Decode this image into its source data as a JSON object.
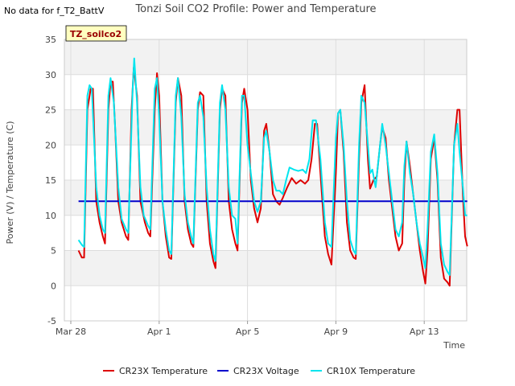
{
  "no_data_note": "No data for f_T2_BattV",
  "chart_data": {
    "type": "line",
    "title": "Tonzi Soil CO2 Profile: Power and Temperature",
    "xlabel": "Time",
    "ylabel": "Power (V) / Temperature (C)",
    "ylim": [
      -5,
      35
    ],
    "xlim": [
      "2025-03-28",
      "2025-04-16"
    ],
    "yticks": [
      -5,
      0,
      5,
      10,
      15,
      20,
      25,
      30,
      35
    ],
    "xticks": [
      {
        "label": "Mar 28",
        "day": 0
      },
      {
        "label": "Apr 1",
        "day": 4
      },
      {
        "label": "Apr 5",
        "day": 8
      },
      {
        "label": "Apr 9",
        "day": 12
      },
      {
        "label": "Apr 13",
        "day": 16
      }
    ],
    "badge": "TZ_soilco2",
    "grid": true,
    "background_bands": true,
    "legend_position": "bottom",
    "series": [
      {
        "name": "CR23X Temperature",
        "color": "#dd0000",
        "points": [
          [
            0.35,
            5
          ],
          [
            0.5,
            4
          ],
          [
            0.6,
            4
          ],
          [
            0.75,
            25
          ],
          [
            0.9,
            28
          ],
          [
            1.0,
            28
          ],
          [
            1.15,
            12
          ],
          [
            1.3,
            9
          ],
          [
            1.45,
            7
          ],
          [
            1.55,
            6
          ],
          [
            1.7,
            25
          ],
          [
            1.8,
            29
          ],
          [
            1.9,
            29
          ],
          [
            2.0,
            23
          ],
          [
            2.15,
            12
          ],
          [
            2.3,
            9
          ],
          [
            2.5,
            7
          ],
          [
            2.6,
            6.5
          ],
          [
            2.75,
            25
          ],
          [
            2.85,
            31
          ],
          [
            3.0,
            27
          ],
          [
            3.15,
            12
          ],
          [
            3.35,
            9
          ],
          [
            3.5,
            7.5
          ],
          [
            3.6,
            7
          ],
          [
            3.8,
            25
          ],
          [
            3.9,
            30.2
          ],
          [
            4.0,
            27
          ],
          [
            4.15,
            12
          ],
          [
            4.3,
            7
          ],
          [
            4.45,
            4
          ],
          [
            4.55,
            3.8
          ],
          [
            4.75,
            26
          ],
          [
            4.85,
            29.5
          ],
          [
            5.0,
            27
          ],
          [
            5.15,
            12
          ],
          [
            5.3,
            8
          ],
          [
            5.45,
            6
          ],
          [
            5.55,
            5.5
          ],
          [
            5.75,
            25
          ],
          [
            5.85,
            27.5
          ],
          [
            6.0,
            27
          ],
          [
            6.15,
            12
          ],
          [
            6.3,
            6
          ],
          [
            6.45,
            3.5
          ],
          [
            6.55,
            2.5
          ],
          [
            6.75,
            25
          ],
          [
            6.85,
            28
          ],
          [
            7.0,
            27
          ],
          [
            7.15,
            12
          ],
          [
            7.3,
            8
          ],
          [
            7.45,
            6
          ],
          [
            7.55,
            5
          ],
          [
            7.75,
            26
          ],
          [
            7.85,
            28
          ],
          [
            8.0,
            25
          ],
          [
            8.15,
            15
          ],
          [
            8.3,
            11
          ],
          [
            8.45,
            9
          ],
          [
            8.6,
            11
          ],
          [
            8.75,
            22
          ],
          [
            8.85,
            23
          ],
          [
            9.0,
            19
          ],
          [
            9.15,
            13
          ],
          [
            9.3,
            12
          ],
          [
            9.45,
            11.5
          ],
          [
            9.6,
            12.5
          ],
          [
            9.8,
            14
          ],
          [
            10.0,
            15.3
          ],
          [
            10.2,
            14.5
          ],
          [
            10.4,
            15
          ],
          [
            10.6,
            14.5
          ],
          [
            10.75,
            15
          ],
          [
            10.9,
            18
          ],
          [
            11.05,
            23
          ],
          [
            11.15,
            23
          ],
          [
            11.3,
            16
          ],
          [
            11.5,
            7
          ],
          [
            11.65,
            4.5
          ],
          [
            11.8,
            3
          ],
          [
            12.0,
            16
          ],
          [
            12.1,
            24.5
          ],
          [
            12.2,
            25
          ],
          [
            12.35,
            19
          ],
          [
            12.5,
            9
          ],
          [
            12.65,
            5
          ],
          [
            12.8,
            4
          ],
          [
            12.9,
            3.8
          ],
          [
            13.05,
            18
          ],
          [
            13.15,
            26
          ],
          [
            13.3,
            28.5
          ],
          [
            13.45,
            18
          ],
          [
            13.55,
            13.8
          ],
          [
            13.7,
            15
          ],
          [
            13.85,
            15.5
          ],
          [
            14.0,
            20
          ],
          [
            14.1,
            22.5
          ],
          [
            14.25,
            21
          ],
          [
            14.4,
            15
          ],
          [
            14.55,
            11
          ],
          [
            14.7,
            7
          ],
          [
            14.85,
            5
          ],
          [
            15.0,
            6
          ],
          [
            15.1,
            15
          ],
          [
            15.2,
            20.5
          ],
          [
            15.35,
            17
          ],
          [
            15.5,
            13
          ],
          [
            15.65,
            9
          ],
          [
            15.8,
            5
          ],
          [
            15.95,
            2
          ],
          [
            16.05,
            0.3
          ],
          [
            16.15,
            5
          ],
          [
            16.3,
            18
          ],
          [
            16.45,
            21
          ],
          [
            16.6,
            15
          ],
          [
            16.75,
            4
          ],
          [
            16.9,
            1
          ],
          [
            17.05,
            0.5
          ],
          [
            17.15,
            0
          ],
          [
            17.35,
            20
          ],
          [
            17.5,
            25
          ],
          [
            17.6,
            25
          ],
          [
            17.75,
            13
          ],
          [
            17.85,
            7
          ],
          [
            17.95,
            5.6
          ]
        ]
      },
      {
        "name": "CR23X Voltage",
        "color": "#0000cc",
        "points": [
          [
            0.35,
            12
          ],
          [
            17.95,
            12
          ]
        ]
      },
      {
        "name": "CR10X Temperature",
        "color": "#00e5ee",
        "points": [
          [
            0.35,
            6.5
          ],
          [
            0.5,
            5.8
          ],
          [
            0.6,
            5.5
          ],
          [
            0.75,
            27
          ],
          [
            0.85,
            28.5
          ],
          [
            0.95,
            28
          ],
          [
            1.15,
            14
          ],
          [
            1.3,
            10
          ],
          [
            1.45,
            8
          ],
          [
            1.55,
            7.5
          ],
          [
            1.7,
            27
          ],
          [
            1.8,
            29.5
          ],
          [
            1.95,
            26
          ],
          [
            2.15,
            14
          ],
          [
            2.3,
            9.5
          ],
          [
            2.5,
            8
          ],
          [
            2.6,
            7.5
          ],
          [
            2.8,
            28
          ],
          [
            2.87,
            32.3
          ],
          [
            3.0,
            26
          ],
          [
            3.15,
            14
          ],
          [
            3.3,
            10
          ],
          [
            3.5,
            8.5
          ],
          [
            3.6,
            8
          ],
          [
            3.8,
            28
          ],
          [
            3.9,
            29.5
          ],
          [
            4.0,
            24
          ],
          [
            4.15,
            12
          ],
          [
            4.3,
            8
          ],
          [
            4.45,
            5
          ],
          [
            4.55,
            4.5
          ],
          [
            4.75,
            27
          ],
          [
            4.85,
            29.5
          ],
          [
            5.0,
            24
          ],
          [
            5.15,
            13
          ],
          [
            5.3,
            9
          ],
          [
            5.45,
            7
          ],
          [
            5.55,
            6
          ],
          [
            5.75,
            26
          ],
          [
            5.85,
            27
          ],
          [
            6.0,
            24
          ],
          [
            6.15,
            14
          ],
          [
            6.3,
            8
          ],
          [
            6.45,
            4.5
          ],
          [
            6.55,
            3.5
          ],
          [
            6.75,
            26
          ],
          [
            6.85,
            28.5
          ],
          [
            7.0,
            25
          ],
          [
            7.15,
            14
          ],
          [
            7.3,
            10
          ],
          [
            7.45,
            9.5
          ],
          [
            7.55,
            6
          ],
          [
            7.75,
            27
          ],
          [
            7.85,
            27
          ],
          [
            8.0,
            20
          ],
          [
            8.15,
            16
          ],
          [
            8.3,
            12
          ],
          [
            8.45,
            10.5
          ],
          [
            8.6,
            12
          ],
          [
            8.75,
            21
          ],
          [
            8.85,
            22
          ],
          [
            9.0,
            19
          ],
          [
            9.15,
            15
          ],
          [
            9.3,
            13.5
          ],
          [
            9.45,
            13.5
          ],
          [
            9.6,
            13
          ],
          [
            9.75,
            15
          ],
          [
            9.9,
            16.8
          ],
          [
            10.1,
            16.5
          ],
          [
            10.3,
            16.3
          ],
          [
            10.5,
            16.5
          ],
          [
            10.65,
            16
          ],
          [
            10.8,
            18
          ],
          [
            10.95,
            23.5
          ],
          [
            11.1,
            23.5
          ],
          [
            11.3,
            18
          ],
          [
            11.5,
            9
          ],
          [
            11.65,
            6
          ],
          [
            11.8,
            5.5
          ],
          [
            12.0,
            21
          ],
          [
            12.1,
            24.5
          ],
          [
            12.2,
            25
          ],
          [
            12.35,
            20
          ],
          [
            12.5,
            12
          ],
          [
            12.65,
            6.5
          ],
          [
            12.8,
            5
          ],
          [
            12.9,
            4.5
          ],
          [
            13.05,
            20
          ],
          [
            13.15,
            27
          ],
          [
            13.3,
            26
          ],
          [
            13.45,
            20
          ],
          [
            13.55,
            16
          ],
          [
            13.65,
            16.5
          ],
          [
            13.8,
            14
          ],
          [
            14.0,
            20
          ],
          [
            14.1,
            23
          ],
          [
            14.25,
            20
          ],
          [
            14.4,
            16
          ],
          [
            14.55,
            12
          ],
          [
            14.7,
            8
          ],
          [
            14.85,
            7
          ],
          [
            15.0,
            9
          ],
          [
            15.1,
            17
          ],
          [
            15.2,
            20.5
          ],
          [
            15.35,
            16
          ],
          [
            15.5,
            13
          ],
          [
            15.65,
            9
          ],
          [
            15.8,
            6
          ],
          [
            15.95,
            4
          ],
          [
            16.05,
            2.5
          ],
          [
            16.15,
            8
          ],
          [
            16.3,
            19
          ],
          [
            16.45,
            21.5
          ],
          [
            16.6,
            16
          ],
          [
            16.75,
            6
          ],
          [
            16.9,
            3
          ],
          [
            17.05,
            2
          ],
          [
            17.15,
            1.5
          ],
          [
            17.35,
            20
          ],
          [
            17.5,
            23
          ],
          [
            17.6,
            19
          ],
          [
            17.75,
            14
          ],
          [
            17.85,
            10
          ],
          [
            17.95,
            10
          ]
        ]
      }
    ]
  }
}
